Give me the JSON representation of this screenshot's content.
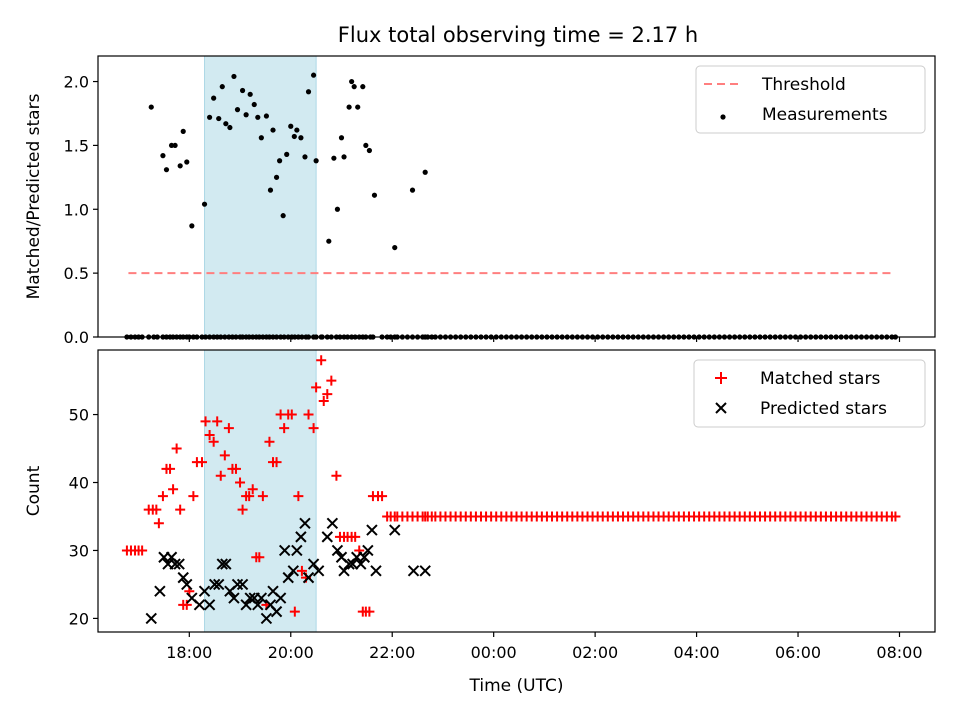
{
  "title": "Flux total observing time = 2.17 h",
  "colors": {
    "threshold": "#ff7f7f",
    "measurement": "#000000",
    "matched": "#ff0000",
    "predicted": "#000000",
    "highlight": "#add8e6"
  },
  "chart_data": [
    {
      "type": "scatter",
      "ylabel": "Matched/Predicted stars",
      "xlabel": "",
      "xlim": [
        16.2,
        32.7
      ],
      "ylim": [
        0.0,
        2.2
      ],
      "yticks": [
        "0.0",
        "0.5",
        "1.0",
        "1.5",
        "2.0"
      ],
      "xticks": [
        "18:00",
        "20:00",
        "22:00",
        "00:00",
        "02:00",
        "04:00",
        "06:00",
        "08:00"
      ],
      "highlight_span": [
        18.3,
        20.5
      ],
      "legend": [
        "Threshold",
        "Measurements"
      ],
      "legend_position": "top-right",
      "threshold": {
        "name": "Threshold",
        "y": 0.5,
        "x_range": [
          16.8,
          31.9
        ]
      },
      "series": [
        {
          "name": "Measurements",
          "x": [
            16.77,
            16.85,
            16.93,
            17.0,
            17.07,
            17.2,
            17.3,
            17.37,
            17.48,
            17.55,
            17.62,
            17.68,
            17.75,
            17.82,
            17.88,
            17.95,
            18.0,
            18.08,
            18.15,
            18.25,
            18.32,
            18.4,
            18.48,
            18.55,
            18.62,
            18.7,
            18.78,
            18.85,
            18.92,
            19.0,
            19.05,
            19.12,
            19.18,
            19.25,
            19.32,
            19.38,
            19.45,
            19.52,
            19.58,
            19.65,
            19.72,
            19.8,
            19.87,
            19.95,
            20.02,
            20.08,
            20.15,
            20.22,
            20.3,
            20.35,
            20.45,
            20.5,
            20.6,
            20.62,
            20.72,
            20.8,
            20.9,
            20.97,
            21.05,
            21.12,
            21.2,
            21.27,
            21.35,
            21.42,
            21.48,
            21.57,
            21.62,
            21.8,
            21.9,
            21.97,
            22.05,
            22.1,
            22.2,
            22.3,
            22.4,
            22.5,
            22.6,
            22.65,
            22.7,
            22.78,
            22.85,
            22.95,
            23.05,
            23.15,
            23.25,
            23.35,
            23.45,
            23.55,
            23.65,
            23.75,
            23.85,
            23.95,
            24.05,
            24.15,
            24.25,
            24.35,
            24.45,
            24.55,
            24.65,
            24.75,
            24.85,
            24.95,
            25.05,
            25.15,
            25.25,
            25.35,
            25.45,
            25.55,
            25.65,
            25.75,
            25.85,
            25.95,
            26.05,
            26.15,
            26.25,
            26.35,
            26.45,
            26.55,
            26.65,
            26.75,
            26.85,
            26.95,
            27.05,
            27.15,
            27.25,
            27.35,
            27.45,
            27.55,
            27.65,
            27.75,
            27.85,
            27.95,
            28.05,
            28.15,
            28.25,
            28.35,
            28.45,
            28.55,
            28.65,
            28.75,
            28.85,
            28.95,
            29.05,
            29.15,
            29.25,
            29.35,
            29.45,
            29.55,
            29.65,
            29.75,
            29.85,
            29.95,
            30.05,
            30.15,
            30.25,
            30.35,
            30.45,
            30.55,
            30.65,
            30.75,
            30.85,
            30.95,
            31.05,
            31.15,
            31.25,
            31.35,
            31.45,
            31.55,
            31.65,
            31.75,
            31.85,
            31.92
          ],
          "y": [
            0,
            0,
            0,
            0,
            0,
            0,
            0,
            0,
            0,
            0,
            0,
            0,
            0,
            0,
            0,
            0,
            0,
            0,
            0,
            0,
            0,
            0,
            0,
            0,
            0,
            0,
            0,
            0,
            0,
            0,
            0,
            0,
            0,
            0,
            0,
            0,
            0,
            0,
            0,
            0,
            0,
            0,
            0,
            0,
            0,
            0,
            0,
            0,
            0,
            0,
            0,
            0,
            0,
            0,
            0,
            0,
            0,
            0,
            0,
            0,
            0,
            0,
            0,
            0,
            0,
            0,
            0,
            0,
            0,
            0,
            0,
            0,
            0,
            0,
            0,
            0,
            0,
            0,
            0,
            0,
            0,
            0,
            0,
            0,
            0,
            0,
            0,
            0,
            0,
            0,
            0,
            0,
            0,
            0,
            0,
            0,
            0,
            0,
            0,
            0,
            0,
            0,
            0,
            0,
            0,
            0,
            0,
            0,
            0,
            0,
            0,
            0,
            0,
            0,
            0,
            0,
            0,
            0,
            0,
            0,
            0,
            0,
            0,
            0,
            0,
            0,
            0,
            0,
            0,
            0,
            0,
            0,
            0,
            0,
            0,
            0,
            0,
            0,
            0,
            0,
            0,
            0,
            0,
            0,
            0,
            0,
            0,
            0,
            0,
            0,
            0,
            0,
            0,
            0,
            0,
            0,
            0,
            0,
            0,
            0,
            0,
            0,
            0,
            0,
            0,
            0,
            0,
            0,
            0,
            0,
            0,
            0
          ]
        },
        {
          "name": "Measurements",
          "x": [
            17.25,
            17.48,
            17.55,
            17.65,
            17.72,
            17.82,
            17.88,
            17.95,
            18.05,
            18.3,
            18.4,
            18.48,
            18.58,
            18.65,
            18.72,
            18.8,
            18.88,
            18.95,
            19.05,
            19.12,
            19.2,
            19.28,
            19.35,
            19.42,
            19.52,
            19.6,
            19.65,
            19.72,
            19.78,
            19.85,
            19.92,
            20.0,
            20.07,
            20.12,
            20.2,
            20.28,
            20.35,
            20.45,
            20.5,
            20.75,
            20.85,
            20.92,
            21.0,
            21.05,
            21.15,
            21.2,
            21.25,
            21.32,
            21.42,
            21.48,
            21.55,
            21.65,
            22.05,
            22.4,
            22.65
          ],
          "y": [
            1.8,
            1.42,
            1.31,
            1.5,
            1.5,
            1.34,
            1.61,
            1.37,
            0.87,
            1.04,
            1.72,
            1.87,
            1.71,
            1.96,
            1.67,
            1.64,
            2.04,
            1.78,
            1.93,
            1.74,
            1.9,
            1.82,
            1.72,
            1.56,
            1.73,
            1.15,
            1.62,
            1.25,
            1.38,
            0.95,
            1.43,
            1.65,
            1.57,
            1.62,
            1.56,
            1.41,
            1.92,
            2.05,
            1.38,
            0.75,
            1.4,
            1.0,
            1.56,
            1.41,
            1.8,
            2.0,
            1.96,
            1.8,
            1.96,
            1.5,
            1.46,
            1.11,
            0.7,
            1.15,
            1.29
          ]
        }
      ]
    },
    {
      "type": "scatter",
      "xlabel": "Time (UTC)",
      "ylabel": "Count",
      "xlim": [
        16.2,
        32.7
      ],
      "ylim": [
        18,
        59.5
      ],
      "yticks": [
        "20",
        "30",
        "40",
        "50"
      ],
      "xticks": [
        "18:00",
        "20:00",
        "22:00",
        "00:00",
        "02:00",
        "04:00",
        "06:00",
        "08:00"
      ],
      "highlight_span": [
        18.3,
        20.5
      ],
      "legend": [
        "Matched stars",
        "Predicted stars"
      ],
      "legend_position": "top-right",
      "series": [
        {
          "name": "Matched stars",
          "marker": "+",
          "x": [
            16.77,
            16.85,
            16.93,
            17.0,
            17.07,
            17.2,
            17.28,
            17.35,
            17.4,
            17.48,
            17.55,
            17.62,
            17.68,
            17.75,
            17.82,
            17.88,
            17.95,
            18.0,
            18.08,
            18.15,
            18.25,
            18.32,
            18.4,
            18.48,
            18.55,
            18.62,
            18.7,
            18.78,
            18.85,
            18.92,
            19.0,
            19.05,
            19.12,
            19.18,
            19.25,
            19.32,
            19.38,
            19.45,
            19.52,
            19.58,
            19.65,
            19.72,
            19.8,
            19.87,
            19.95,
            20.02,
            20.08,
            20.15,
            20.22,
            20.3,
            20.35,
            20.45,
            20.5,
            20.6,
            20.65,
            20.72,
            20.8,
            20.9,
            20.97,
            21.05,
            21.12,
            21.2,
            21.27,
            21.35,
            21.42,
            21.48,
            21.55,
            21.62,
            21.72,
            21.8,
            21.9,
            21.97,
            22.05,
            22.1,
            22.2,
            22.3,
            22.4,
            22.5,
            22.6,
            22.65,
            22.7,
            22.78,
            22.85,
            22.95,
            23.05,
            23.15,
            23.25,
            23.35,
            23.45,
            23.55,
            23.65,
            23.75,
            23.85,
            23.95,
            24.05,
            24.15,
            24.25,
            24.35,
            24.45,
            24.55,
            24.65,
            24.75,
            24.85,
            24.95,
            25.05,
            25.15,
            25.25,
            25.35,
            25.45,
            25.55,
            25.65,
            25.75,
            25.85,
            25.95,
            26.05,
            26.15,
            26.25,
            26.35,
            26.45,
            26.55,
            26.65,
            26.75,
            26.85,
            26.95,
            27.05,
            27.15,
            27.25,
            27.35,
            27.45,
            27.55,
            27.65,
            27.75,
            27.85,
            27.95,
            28.05,
            28.15,
            28.25,
            28.35,
            28.45,
            28.55,
            28.65,
            28.75,
            28.85,
            28.95,
            29.05,
            29.15,
            29.25,
            29.35,
            29.45,
            29.55,
            29.65,
            29.75,
            29.85,
            29.95,
            30.05,
            30.15,
            30.25,
            30.35,
            30.45,
            30.55,
            30.65,
            30.75,
            30.85,
            30.95,
            31.05,
            31.15,
            31.25,
            31.35,
            31.45,
            31.55,
            31.65,
            31.75,
            31.85,
            31.92
          ],
          "y": [
            30,
            30,
            30,
            30,
            30,
            36,
            36,
            36,
            34,
            38,
            42,
            42,
            39,
            45,
            36,
            22,
            22,
            24,
            38,
            43,
            43,
            49,
            47,
            46,
            49,
            41,
            44,
            48,
            42,
            42,
            40,
            36,
            38,
            38,
            39,
            29,
            29,
            38,
            22,
            46,
            43,
            43,
            50,
            48,
            50,
            50,
            21,
            38,
            27,
            26,
            50,
            48,
            54,
            58,
            52,
            53,
            55,
            41,
            32,
            32,
            32,
            32,
            32,
            30,
            21,
            21,
            21,
            38,
            38,
            38,
            35,
            35,
            35,
            35,
            35,
            35,
            35,
            35,
            35,
            35,
            35,
            35,
            35,
            35,
            35,
            35,
            35,
            35,
            35,
            35,
            35,
            35,
            35,
            35,
            35,
            35,
            35,
            35,
            35,
            35,
            35,
            35,
            35,
            35,
            35,
            35,
            35,
            35,
            35,
            35,
            35,
            35,
            35,
            35,
            35,
            35,
            35,
            35,
            35,
            35,
            35,
            35,
            35,
            35,
            35,
            35,
            35,
            35,
            35,
            35,
            35,
            35,
            35,
            35,
            35,
            35,
            35,
            35,
            35,
            35,
            35,
            35,
            35,
            35,
            35,
            35,
            35,
            35,
            35,
            35,
            35,
            35,
            35,
            35,
            35,
            35,
            35,
            35,
            35,
            35,
            35,
            35,
            35,
            35,
            35,
            35,
            35,
            35,
            35,
            35,
            35,
            35,
            35,
            35
          ]
        },
        {
          "name": "Predicted stars",
          "marker": "x",
          "x": [
            17.25,
            17.42,
            17.5,
            17.58,
            17.65,
            17.72,
            17.8,
            17.88,
            17.95,
            18.05,
            18.2,
            18.3,
            18.4,
            18.5,
            18.58,
            18.65,
            18.72,
            18.8,
            18.88,
            18.95,
            19.05,
            19.12,
            19.2,
            19.28,
            19.35,
            19.42,
            19.52,
            19.6,
            19.65,
            19.72,
            19.8,
            19.88,
            19.95,
            20.05,
            20.12,
            20.2,
            20.28,
            20.35,
            20.45,
            20.55,
            20.72,
            20.82,
            20.92,
            21.0,
            21.05,
            21.15,
            21.22,
            21.3,
            21.38,
            21.45,
            21.52,
            21.6,
            21.68,
            22.05,
            22.42,
            22.65
          ],
          "y": [
            20,
            24,
            29,
            28,
            29,
            28,
            28,
            26,
            25,
            23,
            22,
            24,
            22,
            25,
            25,
            28,
            28,
            24,
            23,
            25,
            25,
            22,
            23,
            23,
            22,
            23,
            20,
            22,
            24,
            21,
            23,
            30,
            26,
            27,
            30,
            32,
            34,
            26,
            28,
            27,
            32,
            34,
            30,
            29,
            27,
            28,
            28,
            29,
            28,
            29,
            30,
            33,
            27,
            33,
            27,
            27
          ]
        }
      ]
    }
  ]
}
